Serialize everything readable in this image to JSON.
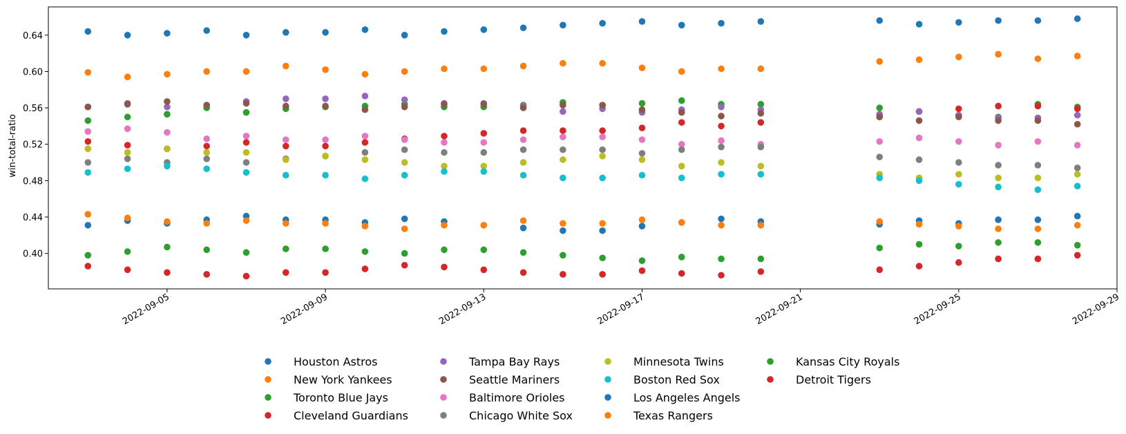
{
  "chart_data": {
    "type": "scatter",
    "ylabel": "win-total-ratio",
    "xlabel": "",
    "x_axis_type": "date",
    "xlim": [
      "2022-09-02",
      "2022-09-29"
    ],
    "ylim": [
      0.361,
      0.671
    ],
    "x_ticks": [
      "2022-09-05",
      "2022-09-09",
      "2022-09-13",
      "2022-09-17",
      "2022-09-21",
      "2022-09-25",
      "2022-09-29"
    ],
    "y_ticks": [
      0.4,
      0.44,
      0.48,
      0.52,
      0.56,
      0.6,
      0.64
    ],
    "grid": false,
    "legend_position": "bottom-center",
    "legend_columns": 4,
    "dates": [
      "2022-09-03",
      "2022-09-04",
      "2022-09-05",
      "2022-09-06",
      "2022-09-07",
      "2022-09-08",
      "2022-09-09",
      "2022-09-10",
      "2022-09-11",
      "2022-09-12",
      "2022-09-13",
      "2022-09-14",
      "2022-09-15",
      "2022-09-16",
      "2022-09-17",
      "2022-09-18",
      "2022-09-19",
      "2022-09-20",
      "2022-09-23",
      "2022-09-24",
      "2022-09-25",
      "2022-09-26",
      "2022-09-27",
      "2022-09-28"
    ],
    "series": [
      {
        "name": "Houston Astros",
        "color": "#1f77b4",
        "values": [
          0.644,
          0.64,
          0.642,
          0.645,
          0.64,
          0.643,
          0.643,
          0.646,
          0.64,
          0.644,
          0.646,
          0.648,
          0.651,
          0.653,
          0.655,
          0.651,
          0.653,
          0.655,
          0.656,
          0.652,
          0.654,
          0.656,
          0.656,
          0.658
        ]
      },
      {
        "name": "New York Yankees",
        "color": "#ff7f0e",
        "values": [
          0.599,
          0.594,
          0.597,
          0.6,
          0.6,
          0.606,
          0.602,
          0.597,
          0.6,
          0.603,
          0.603,
          0.606,
          0.609,
          0.609,
          0.604,
          0.6,
          0.603,
          0.603,
          0.611,
          0.613,
          0.616,
          0.619,
          0.614,
          0.617
        ]
      },
      {
        "name": "Toronto Blue Jays",
        "color": "#2ca02c",
        "values": [
          0.546,
          0.55,
          0.553,
          0.56,
          0.555,
          0.559,
          0.561,
          0.562,
          0.564,
          0.561,
          0.561,
          0.563,
          0.566,
          0.563,
          0.565,
          0.568,
          0.564,
          0.564,
          0.56,
          0.556,
          0.552,
          0.55,
          0.564,
          0.561
        ]
      },
      {
        "name": "Cleveland Guardians",
        "color": "#d62728",
        "values": [
          0.523,
          0.519,
          0.515,
          0.518,
          0.522,
          0.518,
          0.518,
          0.522,
          0.526,
          0.529,
          0.532,
          0.535,
          0.535,
          0.535,
          0.538,
          0.544,
          0.54,
          0.544,
          0.55,
          0.556,
          0.559,
          0.562,
          0.562,
          0.559
        ]
      },
      {
        "name": "Tampa Bay Rays",
        "color": "#9467bd",
        "values": [
          0.561,
          0.565,
          0.561,
          0.563,
          0.567,
          0.57,
          0.57,
          0.573,
          0.569,
          0.565,
          0.565,
          0.562,
          0.556,
          0.559,
          0.555,
          0.558,
          0.561,
          0.558,
          0.553,
          0.556,
          0.552,
          0.549,
          0.549,
          0.552
        ]
      },
      {
        "name": "Seattle Mariners",
        "color": "#8c564b",
        "values": [
          0.561,
          0.564,
          0.567,
          0.563,
          0.565,
          0.562,
          0.562,
          0.558,
          0.561,
          0.564,
          0.564,
          0.56,
          0.563,
          0.563,
          0.558,
          0.555,
          0.551,
          0.554,
          0.55,
          0.546,
          0.55,
          0.546,
          0.546,
          0.542
        ]
      },
      {
        "name": "Baltimore Orioles",
        "color": "#e377c2",
        "values": [
          0.534,
          0.537,
          0.533,
          0.526,
          0.529,
          0.525,
          0.525,
          0.529,
          0.525,
          0.522,
          0.522,
          0.525,
          0.528,
          0.528,
          0.525,
          0.52,
          0.524,
          0.52,
          0.523,
          0.527,
          0.523,
          0.519,
          0.523,
          0.519
        ]
      },
      {
        "name": "Chicago White Sox",
        "color": "#7f7f7f",
        "values": [
          0.5,
          0.504,
          0.5,
          0.504,
          0.5,
          0.504,
          0.507,
          0.511,
          0.514,
          0.511,
          0.511,
          0.514,
          0.514,
          0.514,
          0.51,
          0.514,
          0.517,
          0.517,
          0.506,
          0.503,
          0.5,
          0.497,
          0.497,
          0.494
        ]
      },
      {
        "name": "Minnesota Twins",
        "color": "#bcbd22",
        "values": [
          0.515,
          0.511,
          0.515,
          0.511,
          0.511,
          0.503,
          0.507,
          0.503,
          0.5,
          0.496,
          0.496,
          0.5,
          0.503,
          0.507,
          0.503,
          0.496,
          0.5,
          0.496,
          0.487,
          0.483,
          0.487,
          0.483,
          0.483,
          0.487
        ]
      },
      {
        "name": "Boston Red Sox",
        "color": "#17becf",
        "values": [
          0.489,
          0.493,
          0.496,
          0.493,
          0.489,
          0.486,
          0.486,
          0.482,
          0.486,
          0.49,
          0.49,
          0.486,
          0.483,
          0.483,
          0.486,
          0.483,
          0.487,
          0.487,
          0.483,
          0.48,
          0.476,
          0.473,
          0.47,
          0.474
        ]
      },
      {
        "name": "Los Angeles Angels",
        "color": "#1f77b4",
        "values": [
          0.431,
          0.436,
          0.433,
          0.437,
          0.441,
          0.437,
          0.437,
          0.434,
          0.438,
          0.435,
          0.431,
          0.428,
          0.425,
          0.425,
          0.43,
          0.434,
          0.438,
          0.435,
          0.432,
          0.436,
          0.433,
          0.437,
          0.437,
          0.441
        ]
      },
      {
        "name": "Texas Rangers",
        "color": "#ff7f0e",
        "values": [
          0.443,
          0.439,
          0.435,
          0.433,
          0.436,
          0.433,
          0.433,
          0.43,
          0.427,
          0.431,
          0.431,
          0.436,
          0.433,
          0.433,
          0.437,
          0.434,
          0.431,
          0.431,
          0.435,
          0.432,
          0.43,
          0.427,
          0.427,
          0.431
        ]
      },
      {
        "name": "Kansas City Royals",
        "color": "#2ca02c",
        "values": [
          0.398,
          0.402,
          0.407,
          0.404,
          0.401,
          0.405,
          0.405,
          0.402,
          0.4,
          0.404,
          0.404,
          0.401,
          0.398,
          0.395,
          0.392,
          0.396,
          0.394,
          0.394,
          0.406,
          0.41,
          0.408,
          0.412,
          0.412,
          0.409
        ]
      },
      {
        "name": "Detroit Tigers",
        "color": "#d62728",
        "values": [
          0.386,
          0.382,
          0.379,
          0.377,
          0.375,
          0.379,
          0.379,
          0.383,
          0.387,
          0.385,
          0.382,
          0.379,
          0.377,
          0.377,
          0.381,
          0.378,
          0.376,
          0.38,
          0.382,
          0.386,
          0.39,
          0.394,
          0.394,
          0.398
        ]
      }
    ]
  }
}
